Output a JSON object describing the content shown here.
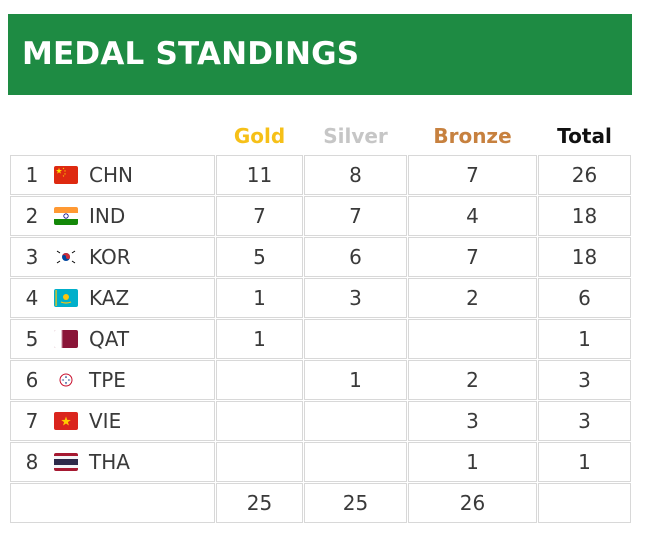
{
  "title": "MEDAL STANDINGS",
  "headers": [
    {
      "label": "Gold",
      "color": "#f6c018"
    },
    {
      "label": "Silver",
      "color": "#c6c6c6"
    },
    {
      "label": "Bronze",
      "color": "#c7813f"
    },
    {
      "label": "Total",
      "color": "#111111"
    }
  ],
  "rows": [
    {
      "rank": "1",
      "code": "CHN",
      "flag": "china-flag-icon",
      "gold": "11",
      "silver": "8",
      "bronze": "7",
      "total": "26"
    },
    {
      "rank": "2",
      "code": "IND",
      "flag": "india-flag-icon",
      "gold": "7",
      "silver": "7",
      "bronze": "4",
      "total": "18"
    },
    {
      "rank": "3",
      "code": "KOR",
      "flag": "korea-flag-icon",
      "gold": "5",
      "silver": "6",
      "bronze": "7",
      "total": "18"
    },
    {
      "rank": "4",
      "code": "KAZ",
      "flag": "kazakhstan-flag-icon",
      "gold": "1",
      "silver": "3",
      "bronze": "2",
      "total": "6"
    },
    {
      "rank": "5",
      "code": "QAT",
      "flag": "qatar-flag-icon",
      "gold": "1",
      "silver": "",
      "bronze": "",
      "total": "1"
    },
    {
      "rank": "6",
      "code": "TPE",
      "flag": "chinese-taipei-flag-icon",
      "gold": "",
      "silver": "1",
      "bronze": "2",
      "total": "3"
    },
    {
      "rank": "7",
      "code": "VIE",
      "flag": "vietnam-flag-icon",
      "gold": "",
      "silver": "",
      "bronze": "3",
      "total": "3"
    },
    {
      "rank": "8",
      "code": "THA",
      "flag": "thailand-flag-icon",
      "gold": "",
      "silver": "",
      "bronze": "1",
      "total": "1"
    }
  ],
  "totals": {
    "gold": "25",
    "silver": "25",
    "bronze": "26",
    "total": ""
  }
}
